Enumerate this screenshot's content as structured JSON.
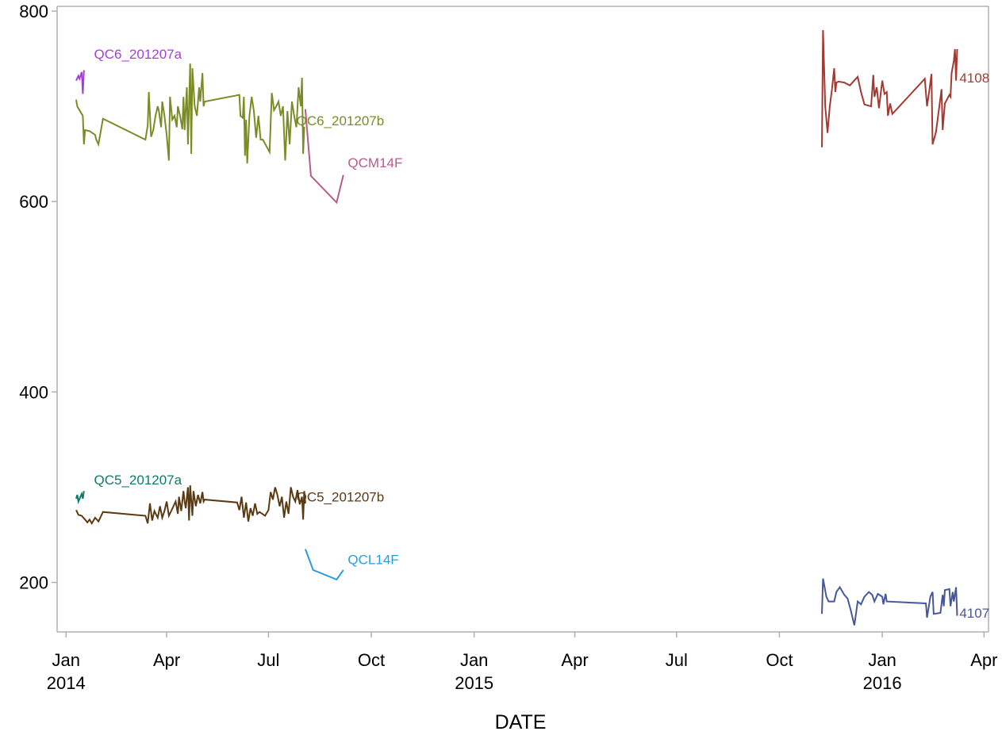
{
  "chart_data": {
    "type": "line",
    "xlabel": "DATE",
    "ylabel": "",
    "x_axis": {
      "type": "date",
      "range": [
        "2013-12-24",
        "2016-04-05"
      ],
      "ticks": [
        {
          "date": "2014-01-01",
          "label": "Jan",
          "year": "2014"
        },
        {
          "date": "2014-04-01",
          "label": "Apr",
          "year": ""
        },
        {
          "date": "2014-07-01",
          "label": "Jul",
          "year": ""
        },
        {
          "date": "2014-10-01",
          "label": "Oct",
          "year": ""
        },
        {
          "date": "2015-01-01",
          "label": "Jan",
          "year": "2015"
        },
        {
          "date": "2015-04-01",
          "label": "Apr",
          "year": ""
        },
        {
          "date": "2015-07-01",
          "label": "Jul",
          "year": ""
        },
        {
          "date": "2015-10-01",
          "label": "Oct",
          "year": ""
        },
        {
          "date": "2016-01-01",
          "label": "Jan",
          "year": "2016"
        },
        {
          "date": "2016-04-01",
          "label": "Apr",
          "year": ""
        }
      ]
    },
    "y_axis": {
      "range": [
        148,
        805
      ],
      "ticks": [
        200,
        400,
        600,
        800
      ]
    },
    "grid": false,
    "legend": "none",
    "series": [
      {
        "name": "QC6_201207a",
        "color": "#a53fd9",
        "label_date": "2014-01-26",
        "label_value": 755,
        "points": [
          [
            "2014-01-10",
            727
          ],
          [
            "2014-01-12",
            732
          ],
          [
            "2014-01-13",
            729
          ],
          [
            "2014-01-15",
            736
          ],
          [
            "2014-01-16",
            713
          ],
          [
            "2014-01-17",
            738
          ]
        ]
      },
      {
        "name": "QC6_201207b",
        "color": "#7b8b26",
        "label_date": "2014-07-26",
        "label_value": 685,
        "points": [
          [
            "2014-01-10",
            707
          ],
          [
            "2014-01-11",
            700
          ],
          [
            "2014-01-16",
            690
          ],
          [
            "2014-01-17",
            660
          ],
          [
            "2014-01-18",
            675
          ],
          [
            "2014-01-22",
            674
          ],
          [
            "2014-01-27",
            670
          ],
          [
            "2014-01-28",
            665
          ],
          [
            "2014-01-30",
            660
          ],
          [
            "2014-02-03",
            687
          ],
          [
            "2014-03-13",
            665
          ],
          [
            "2014-03-15",
            680
          ],
          [
            "2014-03-16",
            715
          ],
          [
            "2014-03-18",
            668
          ],
          [
            "2014-03-20",
            675
          ],
          [
            "2014-03-22",
            690
          ],
          [
            "2014-03-24",
            700
          ],
          [
            "2014-03-25",
            695
          ],
          [
            "2014-03-27",
            678
          ],
          [
            "2014-03-28",
            705
          ],
          [
            "2014-03-30",
            690
          ],
          [
            "2014-04-01",
            670
          ],
          [
            "2014-04-03",
            643
          ],
          [
            "2014-04-04",
            710
          ],
          [
            "2014-04-06",
            686
          ],
          [
            "2014-04-08",
            690
          ],
          [
            "2014-04-10",
            678
          ],
          [
            "2014-04-11",
            700
          ],
          [
            "2014-04-13",
            690
          ],
          [
            "2014-04-15",
            676
          ],
          [
            "2014-04-16",
            710
          ],
          [
            "2014-04-17",
            675
          ],
          [
            "2014-04-19",
            720
          ],
          [
            "2014-04-20",
            660
          ],
          [
            "2014-04-22",
            745
          ],
          [
            "2014-04-23",
            650
          ],
          [
            "2014-04-24",
            740
          ],
          [
            "2014-04-26",
            700
          ],
          [
            "2014-04-28",
            690
          ],
          [
            "2014-04-30",
            720
          ],
          [
            "2014-05-01",
            705
          ],
          [
            "2014-05-03",
            735
          ],
          [
            "2014-05-04",
            700
          ],
          [
            "2014-05-05",
            705
          ],
          [
            "2014-06-05",
            712
          ],
          [
            "2014-06-06",
            690
          ],
          [
            "2014-06-08",
            688
          ],
          [
            "2014-06-09",
            710
          ],
          [
            "2014-06-10",
            648
          ],
          [
            "2014-06-11",
            686
          ],
          [
            "2014-06-12",
            640
          ],
          [
            "2014-06-14",
            690
          ],
          [
            "2014-06-16",
            710
          ],
          [
            "2014-06-18",
            695
          ],
          [
            "2014-06-20",
            667
          ],
          [
            "2014-06-22",
            690
          ],
          [
            "2014-06-24",
            665
          ],
          [
            "2014-06-26",
            665
          ],
          [
            "2014-07-02",
            652
          ],
          [
            "2014-07-04",
            714
          ],
          [
            "2014-07-06",
            696
          ],
          [
            "2014-07-08",
            700
          ],
          [
            "2014-07-10",
            705
          ],
          [
            "2014-07-12",
            690
          ],
          [
            "2014-07-14",
            700
          ],
          [
            "2014-07-16",
            643
          ],
          [
            "2014-07-18",
            695
          ],
          [
            "2014-07-20",
            660
          ],
          [
            "2014-07-22",
            705
          ],
          [
            "2014-07-24",
            690
          ],
          [
            "2014-07-26",
            678
          ],
          [
            "2014-07-28",
            720
          ],
          [
            "2014-07-30",
            700
          ],
          [
            "2014-07-31",
            730
          ],
          [
            "2014-08-01",
            650
          ],
          [
            "2014-08-02",
            678
          ]
        ]
      },
      {
        "name": "QCM14F",
        "color": "#b85c84",
        "label_date": "2014-09-10",
        "label_value": 641,
        "points": [
          [
            "2014-08-03",
            697
          ],
          [
            "2014-08-08",
            627
          ],
          [
            "2014-08-31",
            599
          ],
          [
            "2014-09-06",
            628
          ]
        ]
      },
      {
        "name": "QC5_201207a",
        "color": "#0f7a68",
        "label_date": "2014-01-26",
        "label_value": 308,
        "points": [
          [
            "2014-01-10",
            288
          ],
          [
            "2014-01-11",
            292
          ],
          [
            "2014-01-12",
            285
          ],
          [
            "2014-01-15",
            293
          ],
          [
            "2014-01-16",
            288
          ],
          [
            "2014-01-17",
            296
          ]
        ]
      },
      {
        "name": "QC5_201207b",
        "color": "#5a3a12",
        "label_date": "2014-07-26",
        "label_value": 290,
        "points": [
          [
            "2014-01-10",
            276
          ],
          [
            "2014-01-12",
            271
          ],
          [
            "2014-01-15",
            270
          ],
          [
            "2014-01-18",
            266
          ],
          [
            "2014-01-20",
            263
          ],
          [
            "2014-01-22",
            266
          ],
          [
            "2014-01-24",
            262
          ],
          [
            "2014-01-27",
            268
          ],
          [
            "2014-01-30",
            264
          ],
          [
            "2014-02-03",
            274
          ],
          [
            "2014-03-13",
            270
          ],
          [
            "2014-03-15",
            262
          ],
          [
            "2014-03-17",
            283
          ],
          [
            "2014-03-19",
            265
          ],
          [
            "2014-03-21",
            275
          ],
          [
            "2014-03-24",
            268
          ],
          [
            "2014-03-26",
            280
          ],
          [
            "2014-03-28",
            268
          ],
          [
            "2014-03-30",
            275
          ],
          [
            "2014-04-01",
            285
          ],
          [
            "2014-04-03",
            270
          ],
          [
            "2014-04-05",
            275
          ],
          [
            "2014-04-07",
            280
          ],
          [
            "2014-04-09",
            285
          ],
          [
            "2014-04-11",
            272
          ],
          [
            "2014-04-12",
            290
          ],
          [
            "2014-04-14",
            275
          ],
          [
            "2014-04-16",
            296
          ],
          [
            "2014-04-17",
            285
          ],
          [
            "2014-04-18",
            278
          ],
          [
            "2014-04-20",
            300
          ],
          [
            "2014-04-21",
            265
          ],
          [
            "2014-04-22",
            302
          ],
          [
            "2014-04-24",
            270
          ],
          [
            "2014-04-25",
            296
          ],
          [
            "2014-04-27",
            280
          ],
          [
            "2014-04-29",
            292
          ],
          [
            "2014-05-01",
            283
          ],
          [
            "2014-05-03",
            295
          ],
          [
            "2014-05-04",
            285
          ],
          [
            "2014-05-05",
            287
          ],
          [
            "2014-06-03",
            284
          ],
          [
            "2014-06-05",
            276
          ],
          [
            "2014-06-07",
            290
          ],
          [
            "2014-06-09",
            268
          ],
          [
            "2014-06-11",
            284
          ],
          [
            "2014-06-13",
            264
          ],
          [
            "2014-06-15",
            278
          ],
          [
            "2014-06-17",
            270
          ],
          [
            "2014-06-19",
            283
          ],
          [
            "2014-06-21",
            272
          ],
          [
            "2014-06-23",
            274
          ],
          [
            "2014-06-28",
            270
          ],
          [
            "2014-07-01",
            276
          ],
          [
            "2014-07-03",
            295
          ],
          [
            "2014-07-05",
            287
          ],
          [
            "2014-07-07",
            300
          ],
          [
            "2014-07-09",
            292
          ],
          [
            "2014-07-11",
            280
          ],
          [
            "2014-07-13",
            290
          ],
          [
            "2014-07-15",
            268
          ],
          [
            "2014-07-17",
            285
          ],
          [
            "2014-07-19",
            272
          ],
          [
            "2014-07-21",
            300
          ],
          [
            "2014-07-23",
            290
          ],
          [
            "2014-07-25",
            285
          ],
          [
            "2014-07-27",
            297
          ],
          [
            "2014-07-29",
            282
          ],
          [
            "2014-07-31",
            290
          ],
          [
            "2014-08-01",
            266
          ],
          [
            "2014-08-02",
            296
          ],
          [
            "2014-08-03",
            283
          ]
        ]
      },
      {
        "name": "QCL14F",
        "color": "#2a9cde",
        "label_date": "2014-09-10",
        "label_value": 224,
        "points": [
          [
            "2014-08-03",
            235
          ],
          [
            "2014-08-10",
            213
          ],
          [
            "2014-08-31",
            203
          ],
          [
            "2014-09-06",
            213
          ]
        ]
      },
      {
        "name": "4108",
        "color": "#a23a32",
        "label_date": "2016-03-10",
        "label_value": 730,
        "points": [
          [
            "2015-11-08",
            657
          ],
          [
            "2015-11-09",
            780
          ],
          [
            "2015-11-11",
            700
          ],
          [
            "2015-11-13",
            672
          ],
          [
            "2015-11-15",
            700
          ],
          [
            "2015-11-17",
            718
          ],
          [
            "2015-11-19",
            740
          ],
          [
            "2015-11-20",
            715
          ],
          [
            "2015-11-21",
            725
          ],
          [
            "2015-11-23",
            726
          ],
          [
            "2015-11-28",
            725
          ],
          [
            "2015-12-03",
            722
          ],
          [
            "2015-12-10",
            731
          ],
          [
            "2015-12-13",
            715
          ],
          [
            "2015-12-16",
            702
          ],
          [
            "2015-12-19",
            701
          ],
          [
            "2015-12-22",
            700
          ],
          [
            "2015-12-24",
            733
          ],
          [
            "2015-12-25",
            710
          ],
          [
            "2015-12-27",
            720
          ],
          [
            "2015-12-29",
            698
          ],
          [
            "2016-01-01",
            727
          ],
          [
            "2016-01-03",
            713
          ],
          [
            "2016-01-05",
            715
          ],
          [
            "2016-01-06",
            690
          ],
          [
            "2016-01-08",
            703
          ],
          [
            "2016-01-10",
            692
          ],
          [
            "2016-02-08",
            729
          ],
          [
            "2016-02-10",
            700
          ],
          [
            "2016-02-12",
            716
          ],
          [
            "2016-02-14",
            734
          ],
          [
            "2016-02-15",
            660
          ],
          [
            "2016-02-18",
            673
          ],
          [
            "2016-02-21",
            700
          ],
          [
            "2016-02-23",
            718
          ],
          [
            "2016-02-24",
            675
          ],
          [
            "2016-02-26",
            703
          ],
          [
            "2016-03-01",
            712
          ],
          [
            "2016-03-02",
            710
          ],
          [
            "2016-03-03",
            735
          ],
          [
            "2016-03-05",
            748
          ],
          [
            "2016-03-06",
            760
          ],
          [
            "2016-03-07",
            727
          ],
          [
            "2016-03-08",
            760
          ]
        ]
      },
      {
        "name": "4107",
        "color": "#46579a",
        "label_date": "2016-03-10",
        "label_value": 168,
        "points": [
          [
            "2015-11-08",
            167
          ],
          [
            "2015-11-09",
            204
          ],
          [
            "2015-11-12",
            185
          ],
          [
            "2015-11-14",
            180
          ],
          [
            "2015-11-19",
            180
          ],
          [
            "2015-11-21",
            190
          ],
          [
            "2015-11-24",
            195
          ],
          [
            "2015-11-28",
            187
          ],
          [
            "2015-12-01",
            183
          ],
          [
            "2015-12-04",
            170
          ],
          [
            "2015-12-07",
            155
          ],
          [
            "2015-12-10",
            180
          ],
          [
            "2015-12-13",
            177
          ],
          [
            "2015-12-16",
            185
          ],
          [
            "2015-12-20",
            190
          ],
          [
            "2015-12-23",
            187
          ],
          [
            "2015-12-25",
            180
          ],
          [
            "2015-12-28",
            188
          ],
          [
            "2016-01-01",
            185
          ],
          [
            "2016-01-02",
            177
          ],
          [
            "2016-01-04",
            188
          ],
          [
            "2016-01-05",
            180
          ],
          [
            "2016-02-09",
            178
          ],
          [
            "2016-02-10",
            163
          ],
          [
            "2016-02-13",
            185
          ],
          [
            "2016-02-15",
            190
          ],
          [
            "2016-02-16",
            167
          ],
          [
            "2016-02-22",
            168
          ],
          [
            "2016-02-24",
            187
          ],
          [
            "2016-02-25",
            175
          ],
          [
            "2016-02-26",
            192
          ],
          [
            "2016-03-01",
            193
          ],
          [
            "2016-03-02",
            175
          ],
          [
            "2016-03-04",
            190
          ],
          [
            "2016-03-05",
            180
          ],
          [
            "2016-03-07",
            195
          ],
          [
            "2016-03-08",
            165
          ]
        ]
      }
    ]
  }
}
